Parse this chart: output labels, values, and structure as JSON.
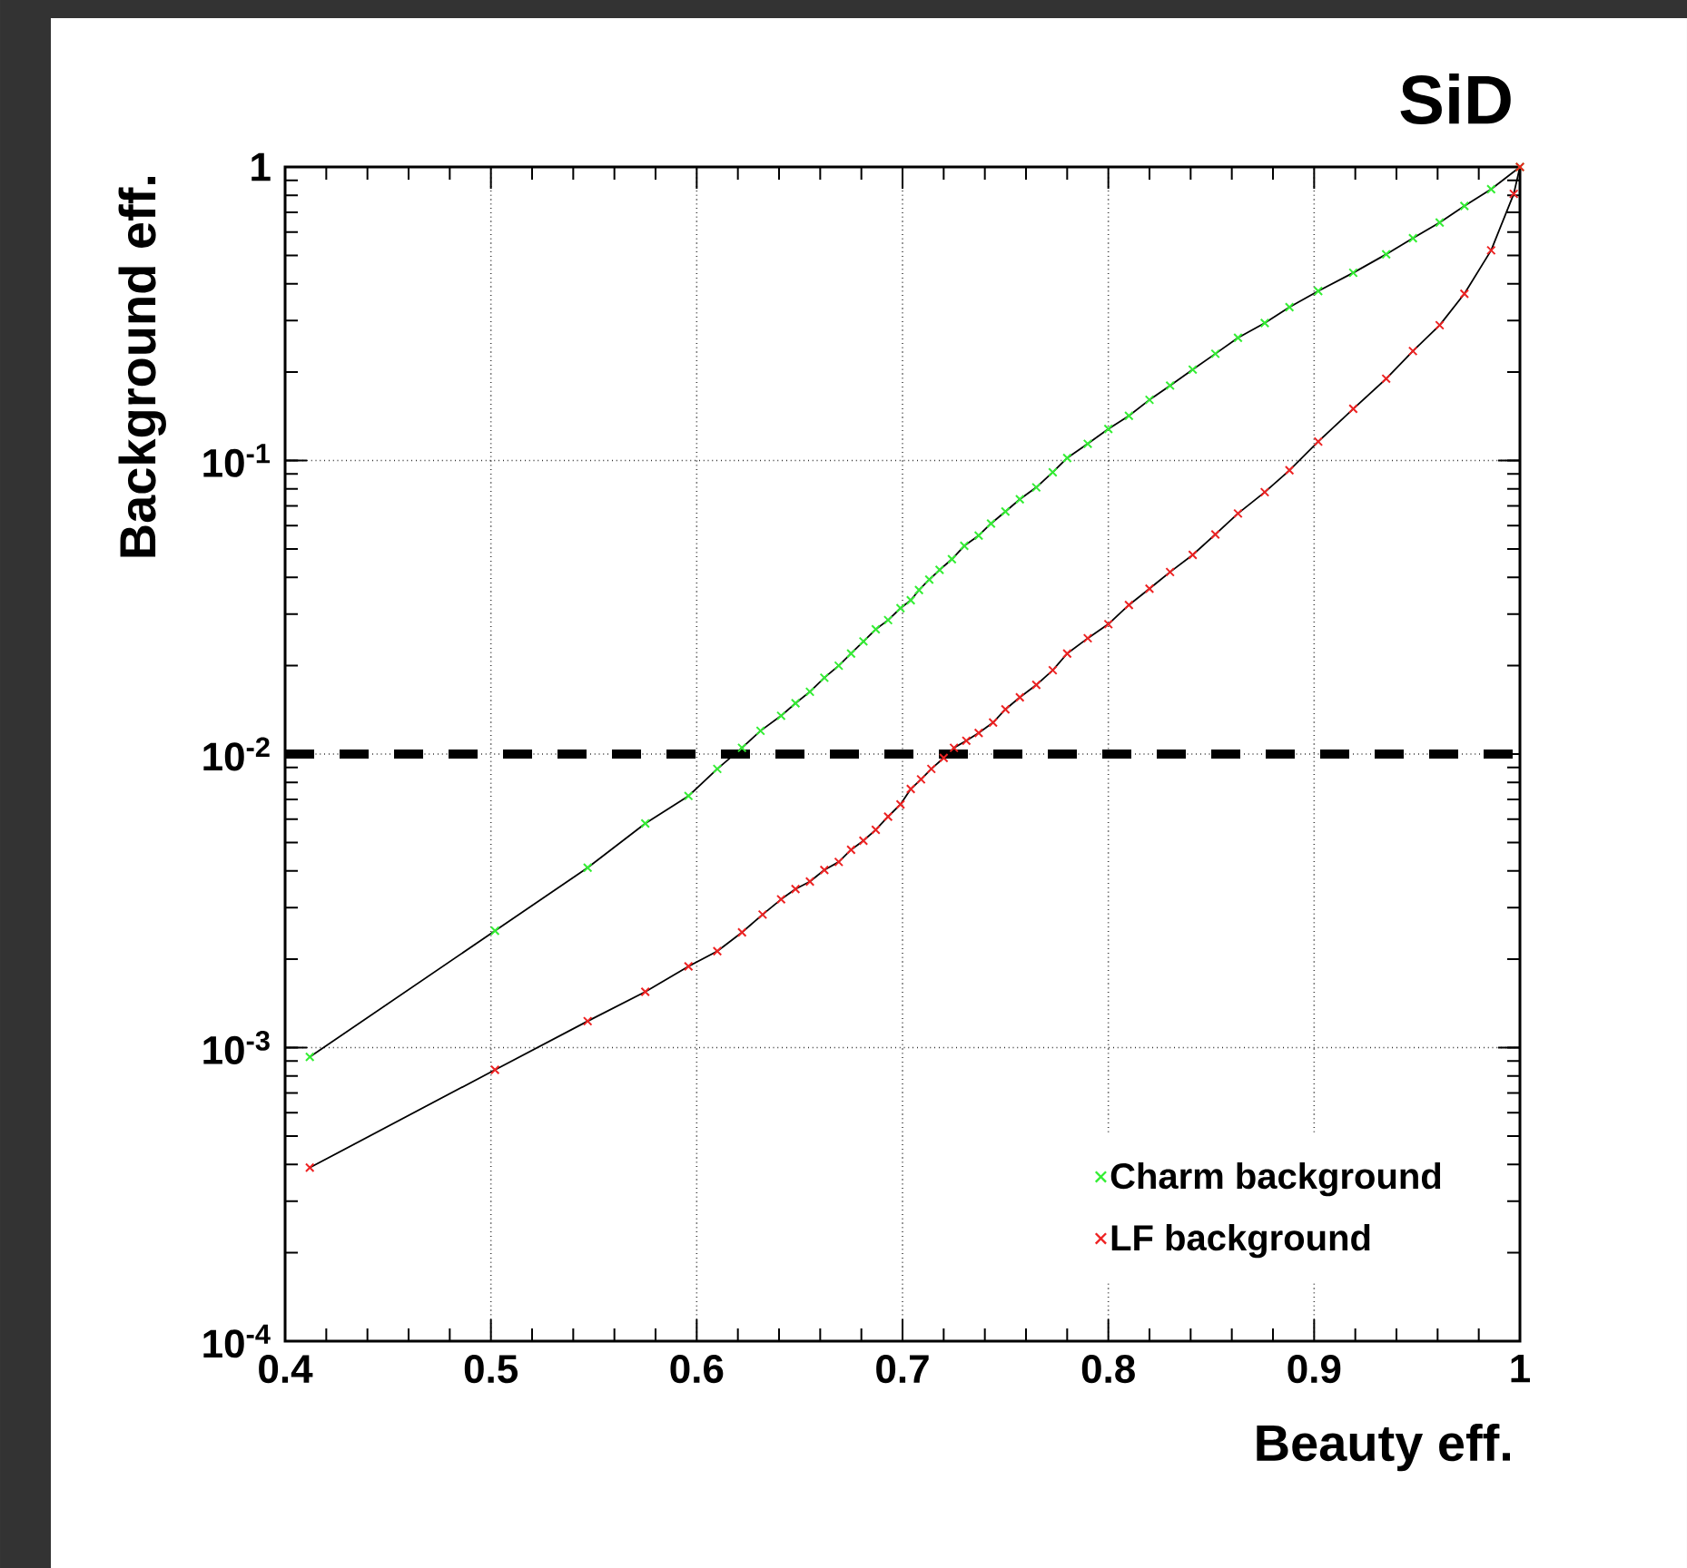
{
  "chart_data": {
    "type": "line",
    "title": "SiD",
    "xlabel": "Beauty eff.",
    "ylabel": "Background eff.",
    "xlim": [
      0.4,
      1
    ],
    "ylim": [
      0.0001,
      1
    ],
    "log": "y",
    "grid": true,
    "legend": "bottom right",
    "marker": "cross",
    "xticks": [
      0.4,
      0.5,
      0.6,
      0.7,
      0.8,
      0.9,
      1
    ],
    "yticks": [
      {
        "value": 0.0001,
        "label": "10$^{-4}$"
      },
      {
        "value": 0.001,
        "label": "10$^{-3}$"
      },
      {
        "value": 0.01,
        "label": "10$^{-2}$"
      },
      {
        "value": 0.1,
        "label": "10$^{-1}$"
      },
      1
    ],
    "ref_lines": [
      {
        "axis": "y",
        "value": 0.01,
        "line_style": "dashed",
        "color": "#000000"
      }
    ],
    "series": [
      {
        "name": "Charm background",
        "color": "#33ee33",
        "x": [
          0.412,
          0.502,
          0.547,
          0.575,
          0.596,
          0.61,
          0.622,
          0.631,
          0.641,
          0.648,
          0.655,
          0.662,
          0.669,
          0.675,
          0.681,
          0.687,
          0.693,
          0.699,
          0.704,
          0.708,
          0.713,
          0.718,
          0.724,
          0.73,
          0.737,
          0.743,
          0.75,
          0.757,
          0.765,
          0.773,
          0.78,
          0.79,
          0.8,
          0.81,
          0.82,
          0.83,
          0.841,
          0.852,
          0.863,
          0.876,
          0.888,
          0.902,
          0.919,
          0.935,
          0.948,
          0.961,
          0.973,
          0.986,
          1.0
        ],
        "values": [
          0.00093,
          0.0025,
          0.0041,
          0.0058,
          0.0072,
          0.0089,
          0.0105,
          0.012,
          0.0135,
          0.0149,
          0.0163,
          0.0182,
          0.02,
          0.022,
          0.0242,
          0.0266,
          0.0286,
          0.0314,
          0.0334,
          0.0362,
          0.0393,
          0.0424,
          0.0461,
          0.0512,
          0.0555,
          0.061,
          0.067,
          0.0738,
          0.081,
          0.0912,
          0.102,
          0.114,
          0.128,
          0.142,
          0.161,
          0.18,
          0.204,
          0.231,
          0.262,
          0.294,
          0.333,
          0.378,
          0.436,
          0.504,
          0.572,
          0.647,
          0.736,
          0.84,
          1.0
        ]
      },
      {
        "name": "LF background",
        "color": "#ee2222",
        "x": [
          0.412,
          0.502,
          0.547,
          0.575,
          0.596,
          0.61,
          0.622,
          0.632,
          0.641,
          0.648,
          0.655,
          0.662,
          0.669,
          0.675,
          0.681,
          0.687,
          0.693,
          0.699,
          0.704,
          0.709,
          0.714,
          0.72,
          0.725,
          0.731,
          0.737,
          0.744,
          0.75,
          0.757,
          0.765,
          0.773,
          0.78,
          0.79,
          0.8,
          0.81,
          0.82,
          0.83,
          0.841,
          0.852,
          0.863,
          0.876,
          0.888,
          0.902,
          0.919,
          0.935,
          0.948,
          0.961,
          0.973,
          0.986,
          0.997,
          1.0
        ],
        "values": [
          0.00039,
          0.00084,
          0.00123,
          0.00155,
          0.00189,
          0.00213,
          0.00247,
          0.00284,
          0.0032,
          0.00347,
          0.00368,
          0.00403,
          0.00429,
          0.00472,
          0.00507,
          0.00552,
          0.00612,
          0.00674,
          0.0076,
          0.0082,
          0.0089,
          0.0097,
          0.0105,
          0.0111,
          0.0118,
          0.0128,
          0.0142,
          0.0156,
          0.0172,
          0.0193,
          0.022,
          0.0248,
          0.0277,
          0.0322,
          0.0366,
          0.0417,
          0.0477,
          0.056,
          0.066,
          0.078,
          0.0926,
          0.116,
          0.15,
          0.19,
          0.236,
          0.289,
          0.37,
          0.52,
          0.81,
          1.0
        ]
      }
    ]
  }
}
